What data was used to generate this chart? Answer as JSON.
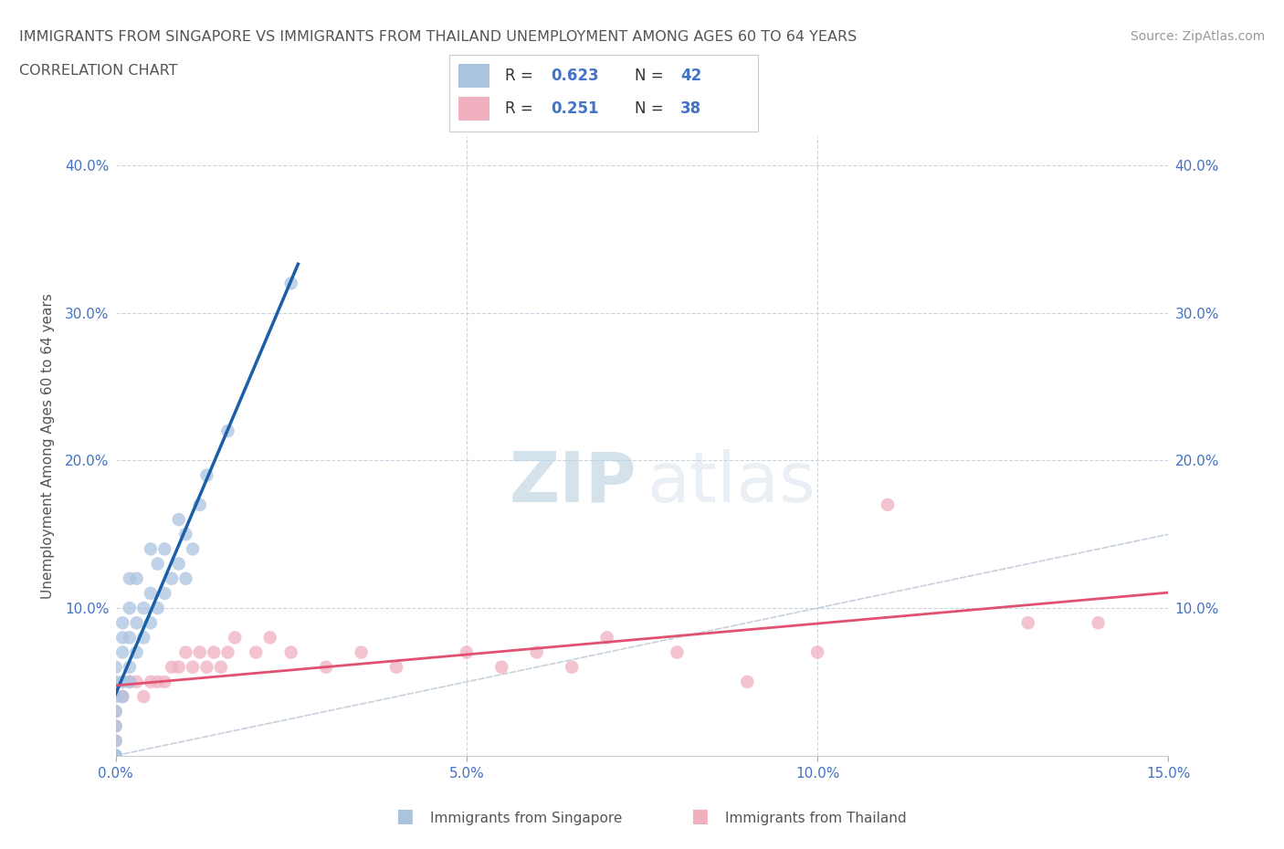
{
  "title_line1": "IMMIGRANTS FROM SINGAPORE VS IMMIGRANTS FROM THAILAND UNEMPLOYMENT AMONG AGES 60 TO 64 YEARS",
  "title_line2": "CORRELATION CHART",
  "source_text": "Source: ZipAtlas.com",
  "ylabel": "Unemployment Among Ages 60 to 64 years",
  "xlim": [
    0.0,
    0.15
  ],
  "ylim": [
    0.0,
    0.42
  ],
  "xticks": [
    0.0,
    0.05,
    0.1,
    0.15
  ],
  "xticklabels": [
    "0.0%",
    "5.0%",
    "10.0%",
    "15.0%"
  ],
  "yticks": [
    0.0,
    0.1,
    0.2,
    0.3,
    0.4
  ],
  "yticklabels": [
    "",
    "10.0%",
    "20.0%",
    "30.0%",
    "40.0%"
  ],
  "singapore_color": "#aac4e0",
  "singapore_edge_color": "#aac4e0",
  "singapore_line_color": "#1a5fa8",
  "thailand_color": "#f0b0c0",
  "thailand_edge_color": "#f0b0c0",
  "thailand_line_color": "#e05070",
  "diag_color": "#c0ccd8",
  "R_singapore": "0.623",
  "N_singapore": "42",
  "R_thailand": "0.251",
  "N_thailand": "38",
  "singapore_x": [
    0.0,
    0.0,
    0.0,
    0.0,
    0.0,
    0.0,
    0.0,
    0.0,
    0.0,
    0.0,
    0.001,
    0.001,
    0.001,
    0.001,
    0.001,
    0.002,
    0.002,
    0.002,
    0.002,
    0.002,
    0.003,
    0.003,
    0.003,
    0.004,
    0.004,
    0.005,
    0.005,
    0.005,
    0.006,
    0.006,
    0.007,
    0.007,
    0.008,
    0.009,
    0.009,
    0.01,
    0.01,
    0.011,
    0.012,
    0.013,
    0.016,
    0.025
  ],
  "singapore_y": [
    0.0,
    0.0,
    0.0,
    0.0,
    0.01,
    0.02,
    0.03,
    0.04,
    0.05,
    0.06,
    0.04,
    0.05,
    0.07,
    0.08,
    0.09,
    0.05,
    0.06,
    0.08,
    0.1,
    0.12,
    0.07,
    0.09,
    0.12,
    0.08,
    0.1,
    0.09,
    0.11,
    0.14,
    0.1,
    0.13,
    0.11,
    0.14,
    0.12,
    0.13,
    0.16,
    0.12,
    0.15,
    0.14,
    0.17,
    0.19,
    0.22,
    0.32
  ],
  "thailand_x": [
    0.0,
    0.0,
    0.0,
    0.0,
    0.001,
    0.002,
    0.003,
    0.004,
    0.005,
    0.006,
    0.007,
    0.008,
    0.009,
    0.01,
    0.011,
    0.012,
    0.013,
    0.014,
    0.015,
    0.016,
    0.017,
    0.02,
    0.022,
    0.025,
    0.03,
    0.035,
    0.04,
    0.05,
    0.055,
    0.06,
    0.065,
    0.07,
    0.08,
    0.09,
    0.1,
    0.11,
    0.13,
    0.14
  ],
  "thailand_y": [
    0.0,
    0.01,
    0.02,
    0.03,
    0.04,
    0.05,
    0.05,
    0.04,
    0.05,
    0.05,
    0.05,
    0.06,
    0.06,
    0.07,
    0.06,
    0.07,
    0.06,
    0.07,
    0.06,
    0.07,
    0.08,
    0.07,
    0.08,
    0.07,
    0.06,
    0.07,
    0.06,
    0.07,
    0.06,
    0.07,
    0.06,
    0.08,
    0.07,
    0.05,
    0.07,
    0.17,
    0.09,
    0.09
  ],
  "watermark_zip": "ZIP",
  "watermark_atlas": "atlas",
  "background_color": "#ffffff",
  "grid_color": "#c8d4e0",
  "title_color": "#555555",
  "axis_label_color": "#555555",
  "tick_color": "#4472c4",
  "legend_label_color": "#333333",
  "legend_value_color": "#4472c4",
  "bottom_legend_sg": "Immigrants from Singapore",
  "bottom_legend_th": "Immigrants from Thailand"
}
